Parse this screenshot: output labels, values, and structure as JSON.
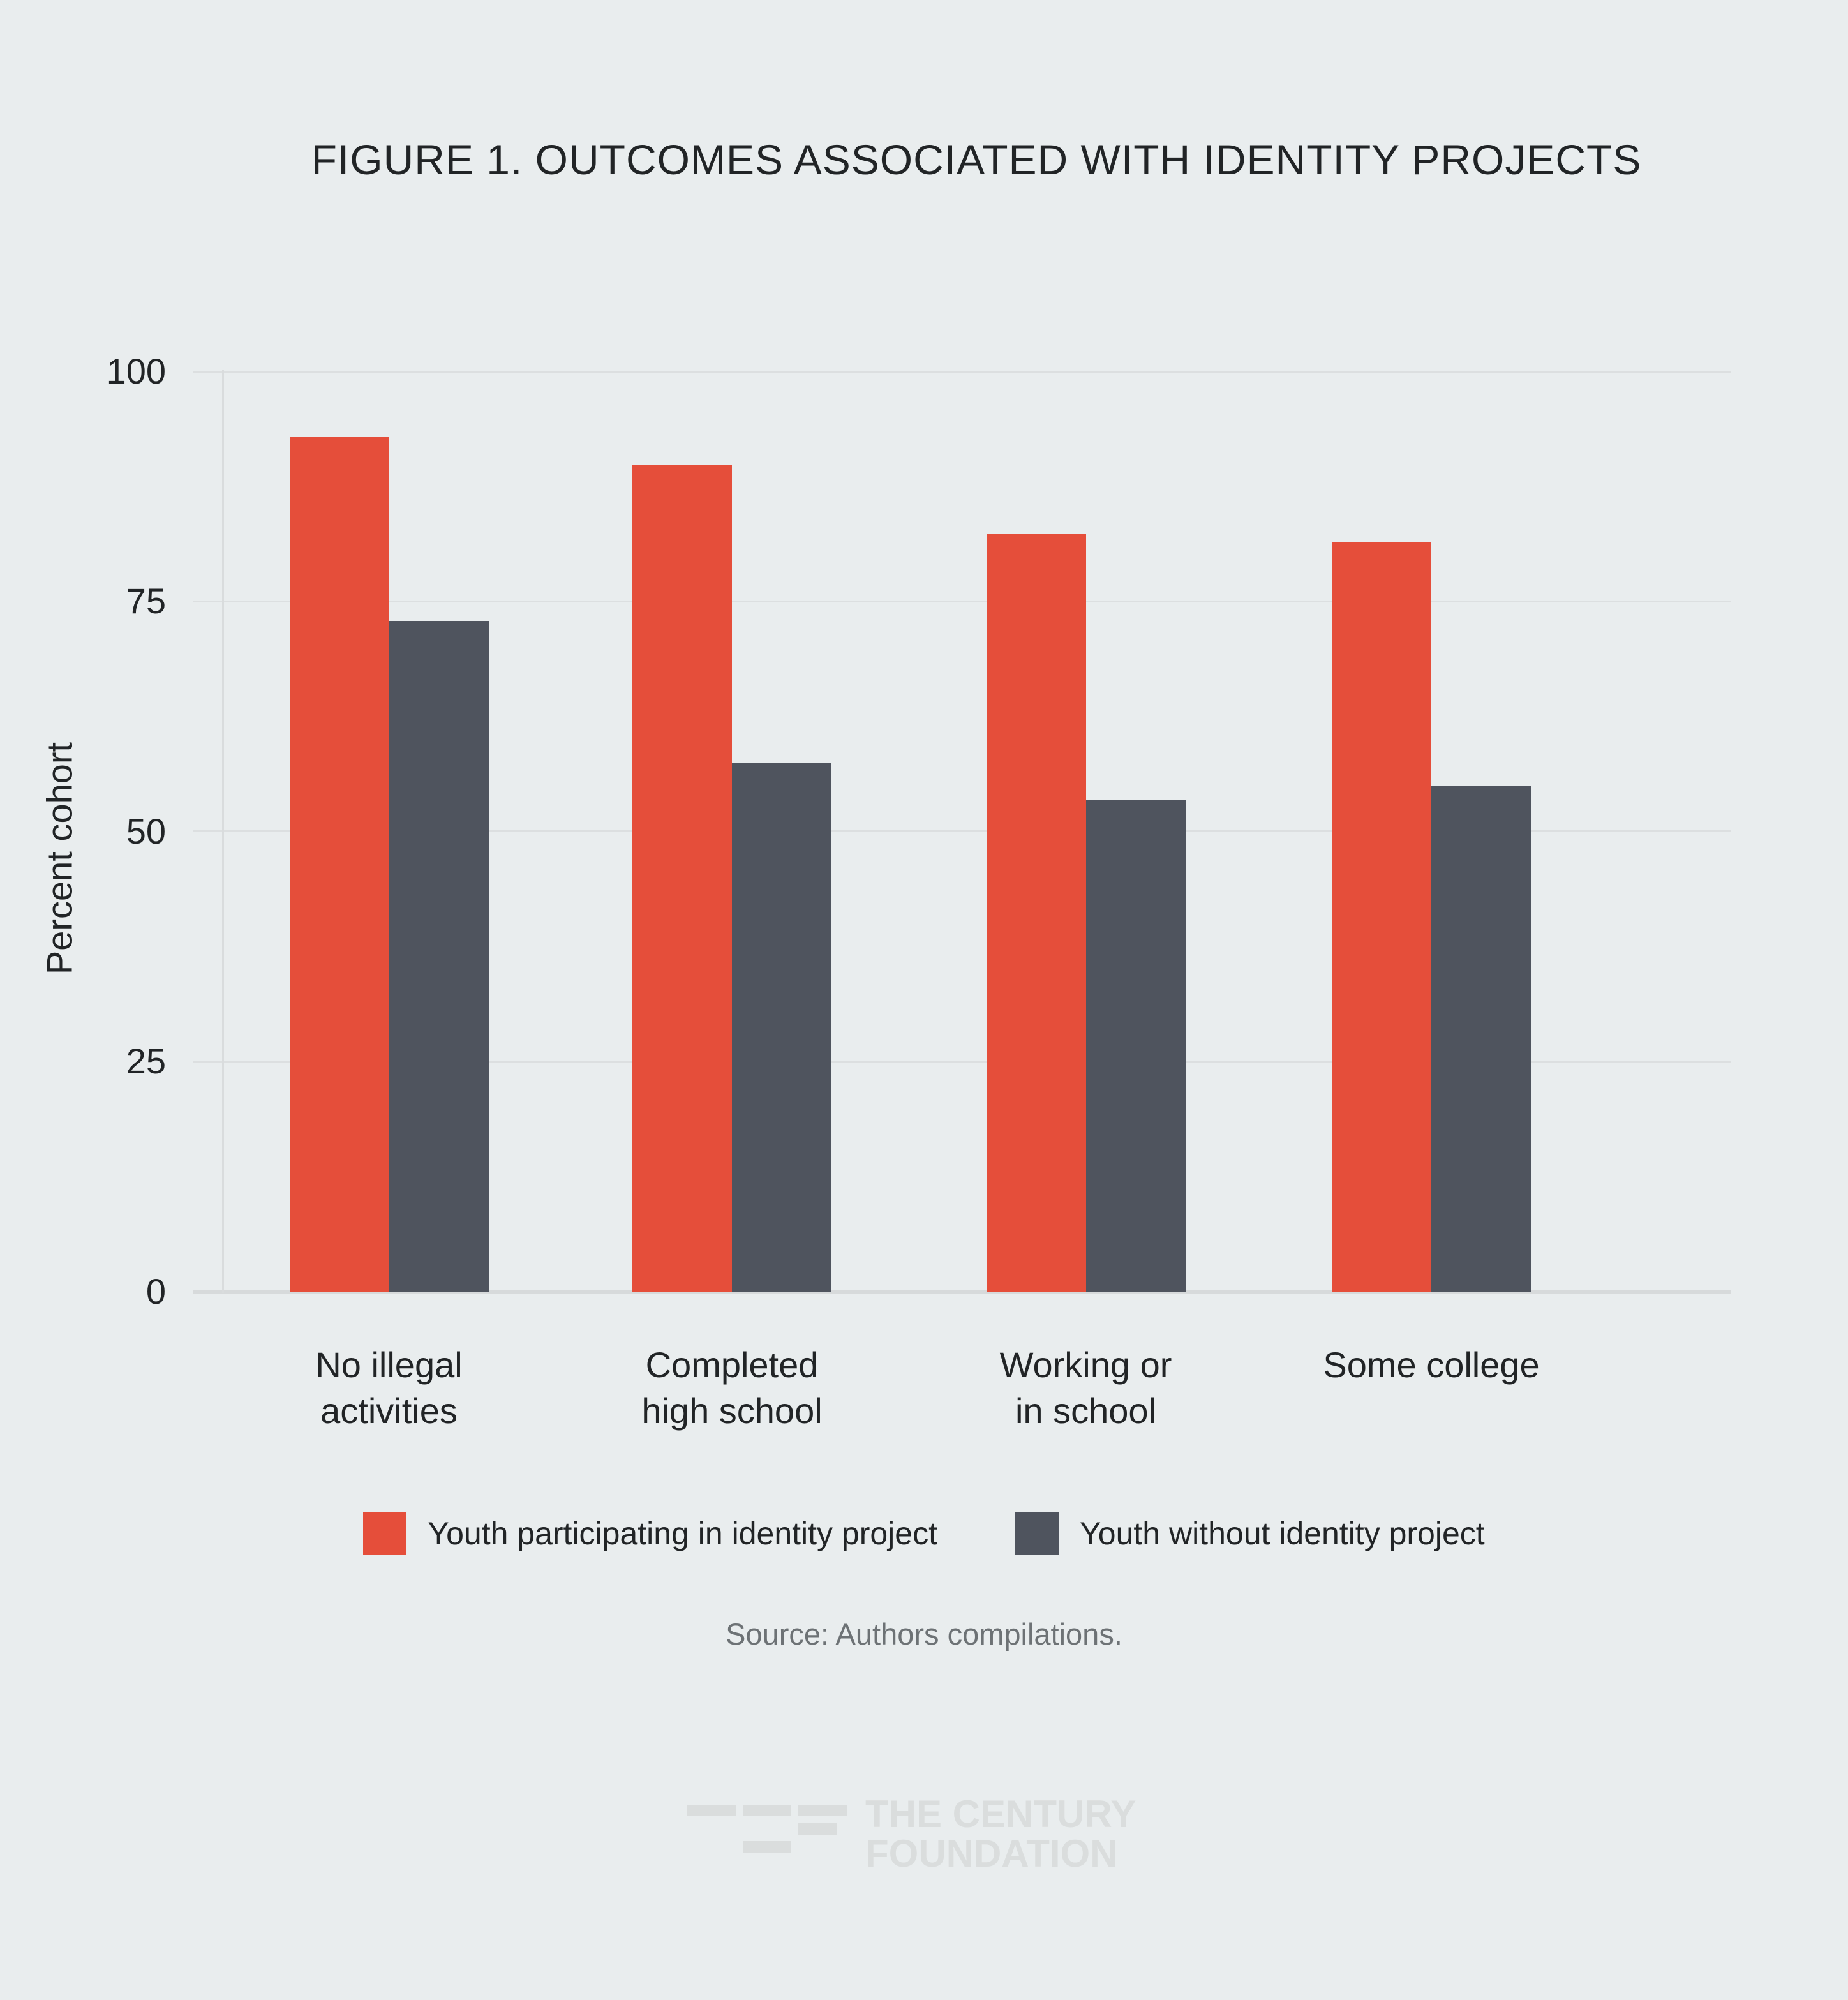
{
  "title": "FIGURE 1. OUTCOMES ASSOCIATED WITH IDENTITY PROJECTS",
  "chart_data": {
    "type": "bar",
    "title": "FIGURE 1. OUTCOMES ASSOCIATED WITH IDENTITY PROJECTS",
    "categories": [
      "No illegal\nactivities",
      "Completed\nhigh school",
      "Working or\nin school",
      "Some college"
    ],
    "series": [
      {
        "name": "Youth participating in identity project",
        "color": "#e54e3a",
        "values": [
          93,
          90,
          82.5,
          81.5
        ]
      },
      {
        "name": "Youth without identity project",
        "color": "#4f545e",
        "values": [
          73,
          57.5,
          53.5,
          55
        ]
      }
    ],
    "xlabel": "",
    "ylabel": "Percent cohort",
    "ylim": [
      0,
      100
    ],
    "yticks": [
      0,
      25,
      50,
      75,
      100
    ],
    "grid": true,
    "legend_position": "bottom"
  },
  "source_note": "Source: Authors compilations.",
  "logo": {
    "line1": "THE CENTURY",
    "line2": "FOUNDATION"
  },
  "colors": {
    "background": "#e9edee",
    "bar_red": "#e54e3a",
    "bar_dark": "#4f545e",
    "gridline": "#dcdfe0",
    "baseline": "#d7dadb",
    "axis_line": "#d9dcdd",
    "text": "#212426",
    "source_text": "#6d7275",
    "logo": "#dadddd"
  }
}
